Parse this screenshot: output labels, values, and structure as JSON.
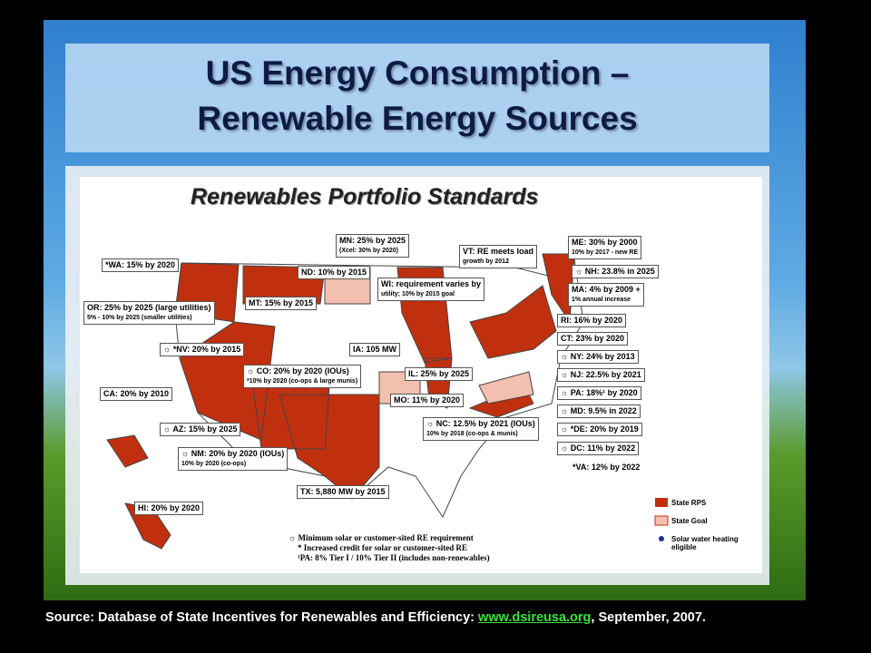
{
  "header": {
    "title": [
      "US Energy Consumption –",
      "Renewable Energy Sources"
    ]
  },
  "map": {
    "title": "Renewables Portfolio Standards",
    "labels": [
      {
        "lines": [
          "*WA: 15% by 2020"
        ]
      },
      {
        "lines": [
          "OR: 25% by 2025 (large utilities)",
          "5% - 10% by 2025 (smaller utilities)"
        ]
      },
      {
        "lines": [
          "☼ *NV: 20% by 2015"
        ]
      },
      {
        "lines": [
          "CA: 20% by 2010"
        ]
      },
      {
        "lines": [
          "☼ AZ: 15% by 2025"
        ]
      },
      {
        "lines": [
          "☼ NM: 20% by 2020 (IOUs)",
          "10% by 2020 (co-ops)"
        ]
      },
      {
        "lines": [
          "HI: 20% by 2020"
        ]
      },
      {
        "lines": [
          "MN: 25% by 2025",
          "(Xcel: 30% by 2020)"
        ]
      },
      {
        "lines": [
          "ND: 10% by 2015"
        ]
      },
      {
        "lines": [
          "MT: 15% by 2015"
        ]
      },
      {
        "lines": [
          "☼ CO: 20% by 2020 (IOUs)",
          "*10% by 2020 (co-ops & large munis)"
        ]
      },
      {
        "lines": [
          "IA: 105 MW"
        ]
      },
      {
        "lines": [
          "WI: requirement varies by",
          "utility; 10% by 2015 goal"
        ]
      },
      {
        "lines": [
          "VT: RE meets load",
          "growth by 2012"
        ]
      },
      {
        "lines": [
          "IL: 25% by 2025"
        ]
      },
      {
        "lines": [
          "MO: 11% by 2020"
        ]
      },
      {
        "lines": [
          "TX: 5,880 MW by 2015"
        ]
      },
      {
        "lines": [
          "☼ NC: 12.5% by 2021 (IOUs)",
          "10% by 2018 (co-ops & munis)"
        ]
      },
      {
        "lines": [
          "ME: 30% by 2000",
          "10% by 2017 - new RE"
        ]
      },
      {
        "lines": [
          "☼ NH: 23.8% in 2025"
        ]
      },
      {
        "lines": [
          "MA: 4% by 2009 +",
          "1% annual increase"
        ]
      },
      {
        "lines": [
          "RI: 16% by 2020"
        ]
      },
      {
        "lines": [
          "CT: 23% by 2020"
        ]
      },
      {
        "lines": [
          "☼ NY: 24% by 2013"
        ]
      },
      {
        "lines": [
          "☼ NJ: 22.5% by 2021"
        ]
      },
      {
        "lines": [
          "☼ PA: 18%¹ by 2020"
        ]
      },
      {
        "lines": [
          "☼ MD: 9.5% in 2022"
        ]
      },
      {
        "lines": [
          "☼ *DE: 20% by 2019"
        ]
      },
      {
        "lines": [
          "☼ DC: 11% by 2022"
        ]
      },
      {
        "lines": [
          "*VA: 12% by 2022"
        ]
      }
    ],
    "legend": [
      "State RPS",
      "State Goal",
      "Solar water heating eligible"
    ],
    "notes": [
      "☼ Minimum solar or customer-sited RE requirement",
      "* Increased credit for solar or customer-sited RE",
      "¹PA: 8% Tier I / 10% Tier II (includes non-renewables)"
    ]
  },
  "source": {
    "text": "Source: Database of State Incentives for Renewables and Efficiency: ",
    "link": "www.dsireusa.org",
    "tail": ", September, 2007."
  }
}
